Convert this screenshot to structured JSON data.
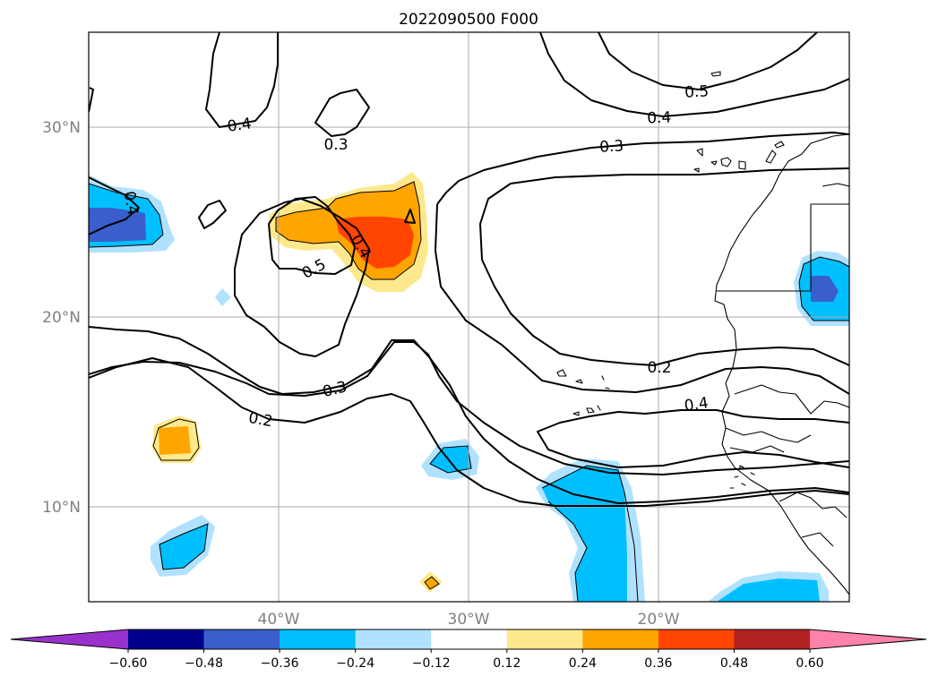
{
  "title": "2022090500 F000",
  "map": {
    "lat_labels": [
      "30°N",
      "20°N",
      "10°N"
    ],
    "lon_labels": [
      "40°W",
      "30°W",
      "20°W"
    ],
    "contour_labels": [
      "0.4",
      "0.3",
      "0.5",
      "0.4",
      "0.3",
      "0.4",
      "0.5",
      "0.4",
      "0.2",
      "0.4",
      "0.3",
      "0.2"
    ],
    "contour_label_rows": [
      {
        "text": "0.4",
        "where": "north-west"
      },
      {
        "text": "0.3",
        "where": "north-central"
      },
      {
        "text": "0.5",
        "where": "north-east"
      },
      {
        "text": "0.4",
        "where": "north-east"
      },
      {
        "text": "0.3",
        "where": "north-east"
      },
      {
        "text": "0.4",
        "where": "west"
      },
      {
        "text": "0.5",
        "where": "central"
      },
      {
        "text": "0.4",
        "where": "central"
      },
      {
        "text": "0.2",
        "where": "east"
      },
      {
        "text": "0.4",
        "where": "south-east"
      },
      {
        "text": "0.3",
        "where": "south-central"
      },
      {
        "text": "0.2",
        "where": "south-west"
      }
    ]
  },
  "colorbar": {
    "tick_labels": [
      "−0.60",
      "−0.48",
      "−0.36",
      "−0.24",
      "−0.12",
      "0.12",
      "0.24",
      "0.36",
      "0.48",
      "0.60"
    ],
    "colors": [
      "#9932cc",
      "#00008b",
      "#3a5fcd",
      "#00bfff",
      "#b0e2ff",
      "#ffffff",
      "#fde98b",
      "#ffa500",
      "#ff4500",
      "#b22222",
      "#ff82ab"
    ],
    "extend": "both"
  },
  "palette": {
    "lightblue": "#b0e2ff",
    "deepskyblue": "#00bfff",
    "royalblue": "#3a5fcd",
    "lightyellow": "#fde98b",
    "orange": "#ffa500",
    "orangered": "#ff4500"
  }
}
